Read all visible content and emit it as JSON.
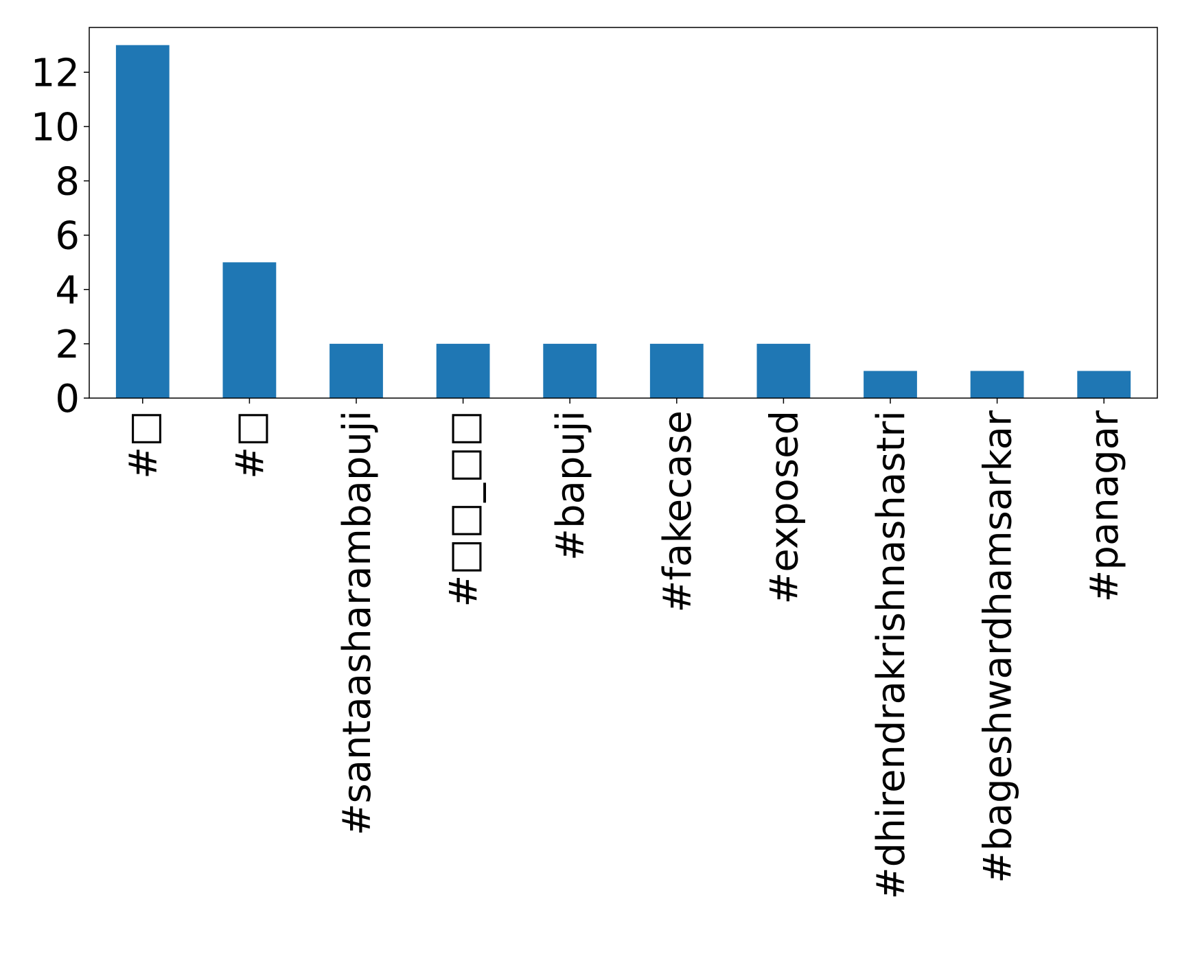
{
  "chart_data": {
    "type": "bar",
    "title": "",
    "xlabel": "",
    "ylabel": "",
    "categories": [
      "#□",
      "#□",
      "#santaasharambapuji",
      "#□□_□□",
      "#bapuji",
      "#fakecase",
      "#exposed",
      "#dhirendrakrishnashastri",
      "#bageshwardhamsarkar",
      "#panagar"
    ],
    "values": [
      13,
      5,
      2,
      2,
      2,
      2,
      2,
      1,
      1,
      1
    ],
    "ylim": [
      0,
      13.65
    ],
    "yticks": [
      0,
      2,
      4,
      6,
      8,
      10,
      12
    ],
    "yticks_labels": [
      "0",
      "2",
      "4",
      "6",
      "8",
      "10",
      "12"
    ],
    "grid": false,
    "bar_color": "#1f77b4"
  }
}
